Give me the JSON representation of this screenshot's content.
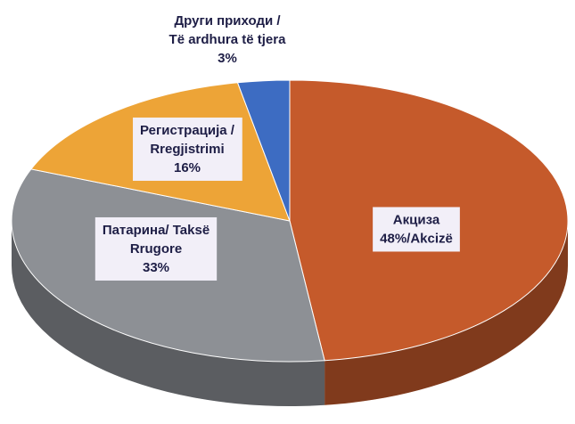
{
  "chart_data": {
    "type": "pie",
    "categories": [
      [
        "Акциза"
      ],
      [
        "Патарина/ Taksë",
        "Rrugore"
      ],
      [
        "Регистрација /",
        "Rregjistrimi"
      ],
      [
        "Други приходи /",
        "Të ardhura të tjera"
      ]
    ],
    "values": [
      48,
      33,
      16,
      3
    ],
    "value_labels": [
      "48%/Akcizë",
      "33%",
      "16%",
      "3%"
    ],
    "colors": [
      "#c55a2b",
      "#8d9095",
      "#eda437",
      "#3d6cc2"
    ]
  }
}
